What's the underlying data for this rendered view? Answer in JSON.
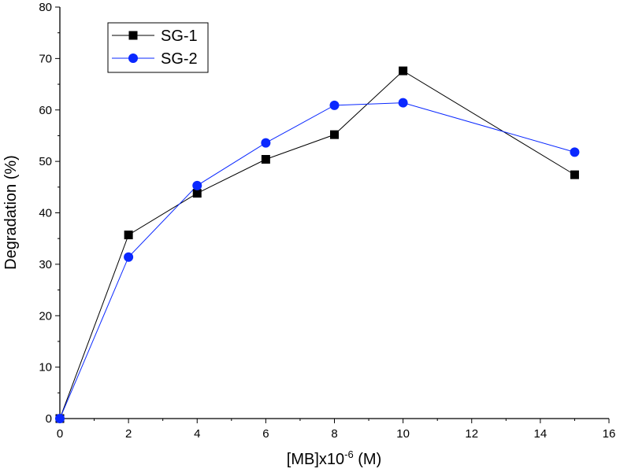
{
  "chart_data": {
    "type": "line",
    "title": "",
    "xlabel": "[MB]x10",
    "xlabel_sup": "-6",
    "xlabel_unit": " (M)",
    "ylabel": "Degradation (%)",
    "xlim": [
      0,
      16
    ],
    "ylim": [
      0,
      80
    ],
    "xticks": [
      0,
      2,
      4,
      6,
      8,
      10,
      12,
      14,
      16
    ],
    "yticks": [
      0,
      10,
      20,
      30,
      40,
      50,
      60,
      70,
      80
    ],
    "grid": false,
    "legend_position": "top-left",
    "series": [
      {
        "name": "SG-1",
        "color": "#000000",
        "marker": "square",
        "x": [
          0,
          2,
          4,
          6,
          8,
          10,
          15
        ],
        "y": [
          0,
          35.7,
          43.8,
          50.4,
          55.2,
          67.6,
          47.4
        ]
      },
      {
        "name": "SG-2",
        "color": "#0a28ff",
        "marker": "circle",
        "x": [
          0,
          2,
          4,
          6,
          8,
          10,
          15
        ],
        "y": [
          0,
          31.4,
          45.3,
          53.6,
          60.9,
          61.4,
          51.8
        ]
      }
    ]
  }
}
